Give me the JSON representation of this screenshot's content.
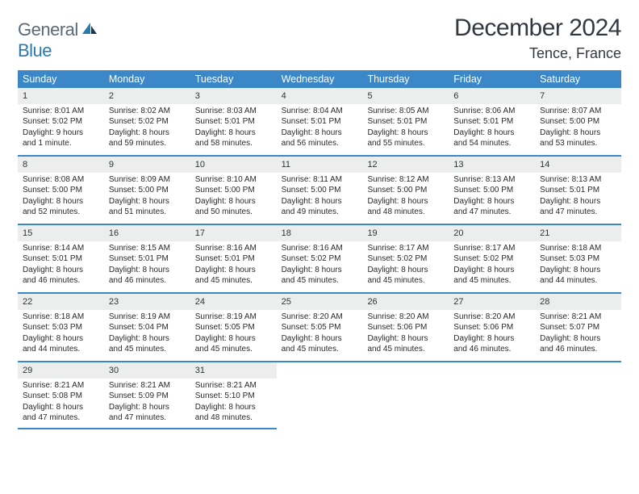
{
  "logo": {
    "part1": "General",
    "part2": "Blue"
  },
  "title": "December 2024",
  "location": "Tence, France",
  "colors": {
    "header_bg": "#3b87c8",
    "daynum_bg": "#eceded",
    "border": "#3b87c8",
    "text": "#27292c",
    "logo_gray": "#5a6a78",
    "logo_blue": "#2a7ab0"
  },
  "weekdays": [
    "Sunday",
    "Monday",
    "Tuesday",
    "Wednesday",
    "Thursday",
    "Friday",
    "Saturday"
  ],
  "weeks": [
    [
      {
        "n": "1",
        "sr": "Sunrise: 8:01 AM",
        "ss": "Sunset: 5:02 PM",
        "d1": "Daylight: 9 hours",
        "d2": "and 1 minute."
      },
      {
        "n": "2",
        "sr": "Sunrise: 8:02 AM",
        "ss": "Sunset: 5:02 PM",
        "d1": "Daylight: 8 hours",
        "d2": "and 59 minutes."
      },
      {
        "n": "3",
        "sr": "Sunrise: 8:03 AM",
        "ss": "Sunset: 5:01 PM",
        "d1": "Daylight: 8 hours",
        "d2": "and 58 minutes."
      },
      {
        "n": "4",
        "sr": "Sunrise: 8:04 AM",
        "ss": "Sunset: 5:01 PM",
        "d1": "Daylight: 8 hours",
        "d2": "and 56 minutes."
      },
      {
        "n": "5",
        "sr": "Sunrise: 8:05 AM",
        "ss": "Sunset: 5:01 PM",
        "d1": "Daylight: 8 hours",
        "d2": "and 55 minutes."
      },
      {
        "n": "6",
        "sr": "Sunrise: 8:06 AM",
        "ss": "Sunset: 5:01 PM",
        "d1": "Daylight: 8 hours",
        "d2": "and 54 minutes."
      },
      {
        "n": "7",
        "sr": "Sunrise: 8:07 AM",
        "ss": "Sunset: 5:00 PM",
        "d1": "Daylight: 8 hours",
        "d2": "and 53 minutes."
      }
    ],
    [
      {
        "n": "8",
        "sr": "Sunrise: 8:08 AM",
        "ss": "Sunset: 5:00 PM",
        "d1": "Daylight: 8 hours",
        "d2": "and 52 minutes."
      },
      {
        "n": "9",
        "sr": "Sunrise: 8:09 AM",
        "ss": "Sunset: 5:00 PM",
        "d1": "Daylight: 8 hours",
        "d2": "and 51 minutes."
      },
      {
        "n": "10",
        "sr": "Sunrise: 8:10 AM",
        "ss": "Sunset: 5:00 PM",
        "d1": "Daylight: 8 hours",
        "d2": "and 50 minutes."
      },
      {
        "n": "11",
        "sr": "Sunrise: 8:11 AM",
        "ss": "Sunset: 5:00 PM",
        "d1": "Daylight: 8 hours",
        "d2": "and 49 minutes."
      },
      {
        "n": "12",
        "sr": "Sunrise: 8:12 AM",
        "ss": "Sunset: 5:00 PM",
        "d1": "Daylight: 8 hours",
        "d2": "and 48 minutes."
      },
      {
        "n": "13",
        "sr": "Sunrise: 8:13 AM",
        "ss": "Sunset: 5:00 PM",
        "d1": "Daylight: 8 hours",
        "d2": "and 47 minutes."
      },
      {
        "n": "14",
        "sr": "Sunrise: 8:13 AM",
        "ss": "Sunset: 5:01 PM",
        "d1": "Daylight: 8 hours",
        "d2": "and 47 minutes."
      }
    ],
    [
      {
        "n": "15",
        "sr": "Sunrise: 8:14 AM",
        "ss": "Sunset: 5:01 PM",
        "d1": "Daylight: 8 hours",
        "d2": "and 46 minutes."
      },
      {
        "n": "16",
        "sr": "Sunrise: 8:15 AM",
        "ss": "Sunset: 5:01 PM",
        "d1": "Daylight: 8 hours",
        "d2": "and 46 minutes."
      },
      {
        "n": "17",
        "sr": "Sunrise: 8:16 AM",
        "ss": "Sunset: 5:01 PM",
        "d1": "Daylight: 8 hours",
        "d2": "and 45 minutes."
      },
      {
        "n": "18",
        "sr": "Sunrise: 8:16 AM",
        "ss": "Sunset: 5:02 PM",
        "d1": "Daylight: 8 hours",
        "d2": "and 45 minutes."
      },
      {
        "n": "19",
        "sr": "Sunrise: 8:17 AM",
        "ss": "Sunset: 5:02 PM",
        "d1": "Daylight: 8 hours",
        "d2": "and 45 minutes."
      },
      {
        "n": "20",
        "sr": "Sunrise: 8:17 AM",
        "ss": "Sunset: 5:02 PM",
        "d1": "Daylight: 8 hours",
        "d2": "and 45 minutes."
      },
      {
        "n": "21",
        "sr": "Sunrise: 8:18 AM",
        "ss": "Sunset: 5:03 PM",
        "d1": "Daylight: 8 hours",
        "d2": "and 44 minutes."
      }
    ],
    [
      {
        "n": "22",
        "sr": "Sunrise: 8:18 AM",
        "ss": "Sunset: 5:03 PM",
        "d1": "Daylight: 8 hours",
        "d2": "and 44 minutes."
      },
      {
        "n": "23",
        "sr": "Sunrise: 8:19 AM",
        "ss": "Sunset: 5:04 PM",
        "d1": "Daylight: 8 hours",
        "d2": "and 45 minutes."
      },
      {
        "n": "24",
        "sr": "Sunrise: 8:19 AM",
        "ss": "Sunset: 5:05 PM",
        "d1": "Daylight: 8 hours",
        "d2": "and 45 minutes."
      },
      {
        "n": "25",
        "sr": "Sunrise: 8:20 AM",
        "ss": "Sunset: 5:05 PM",
        "d1": "Daylight: 8 hours",
        "d2": "and 45 minutes."
      },
      {
        "n": "26",
        "sr": "Sunrise: 8:20 AM",
        "ss": "Sunset: 5:06 PM",
        "d1": "Daylight: 8 hours",
        "d2": "and 45 minutes."
      },
      {
        "n": "27",
        "sr": "Sunrise: 8:20 AM",
        "ss": "Sunset: 5:06 PM",
        "d1": "Daylight: 8 hours",
        "d2": "and 46 minutes."
      },
      {
        "n": "28",
        "sr": "Sunrise: 8:21 AM",
        "ss": "Sunset: 5:07 PM",
        "d1": "Daylight: 8 hours",
        "d2": "and 46 minutes."
      }
    ],
    [
      {
        "n": "29",
        "sr": "Sunrise: 8:21 AM",
        "ss": "Sunset: 5:08 PM",
        "d1": "Daylight: 8 hours",
        "d2": "and 47 minutes."
      },
      {
        "n": "30",
        "sr": "Sunrise: 8:21 AM",
        "ss": "Sunset: 5:09 PM",
        "d1": "Daylight: 8 hours",
        "d2": "and 47 minutes."
      },
      {
        "n": "31",
        "sr": "Sunrise: 8:21 AM",
        "ss": "Sunset: 5:10 PM",
        "d1": "Daylight: 8 hours",
        "d2": "and 48 minutes."
      },
      null,
      null,
      null,
      null
    ]
  ]
}
